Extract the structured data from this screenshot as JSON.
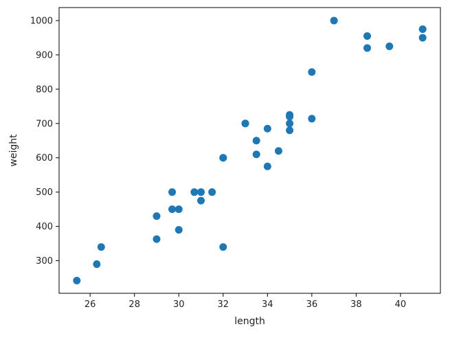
{
  "chart_data": {
    "type": "scatter",
    "title": "",
    "xlabel": "length",
    "ylabel": "weight",
    "xlim": [
      24.6,
      41.8
    ],
    "ylim": [
      205,
      1038
    ],
    "xticks": [
      26,
      28,
      30,
      32,
      34,
      36,
      38,
      40
    ],
    "yticks": [
      300,
      400,
      500,
      600,
      700,
      800,
      900,
      1000
    ],
    "grid": false,
    "legend": "none",
    "marker_color": "#1f77b4",
    "points": [
      {
        "x": 25.4,
        "y": 242
      },
      {
        "x": 26.3,
        "y": 290
      },
      {
        "x": 26.5,
        "y": 340
      },
      {
        "x": 29.0,
        "y": 363
      },
      {
        "x": 29.0,
        "y": 430
      },
      {
        "x": 29.7,
        "y": 450
      },
      {
        "x": 29.7,
        "y": 500
      },
      {
        "x": 30.0,
        "y": 390
      },
      {
        "x": 30.0,
        "y": 450
      },
      {
        "x": 30.7,
        "y": 500
      },
      {
        "x": 31.0,
        "y": 475
      },
      {
        "x": 31.0,
        "y": 500
      },
      {
        "x": 31.5,
        "y": 500
      },
      {
        "x": 32.0,
        "y": 340
      },
      {
        "x": 32.0,
        "y": 600
      },
      {
        "x": 32.0,
        "y": 600
      },
      {
        "x": 33.0,
        "y": 700
      },
      {
        "x": 33.0,
        "y": 700
      },
      {
        "x": 33.5,
        "y": 610
      },
      {
        "x": 33.5,
        "y": 650
      },
      {
        "x": 34.0,
        "y": 575
      },
      {
        "x": 34.0,
        "y": 685
      },
      {
        "x": 34.5,
        "y": 620
      },
      {
        "x": 35.0,
        "y": 680
      },
      {
        "x": 35.0,
        "y": 700
      },
      {
        "x": 35.0,
        "y": 725
      },
      {
        "x": 35.0,
        "y": 720
      },
      {
        "x": 36.0,
        "y": 714
      },
      {
        "x": 36.0,
        "y": 850
      },
      {
        "x": 37.0,
        "y": 1000
      },
      {
        "x": 38.5,
        "y": 920
      },
      {
        "x": 38.5,
        "y": 955
      },
      {
        "x": 39.5,
        "y": 925
      },
      {
        "x": 41.0,
        "y": 975
      },
      {
        "x": 41.0,
        "y": 950
      }
    ]
  }
}
